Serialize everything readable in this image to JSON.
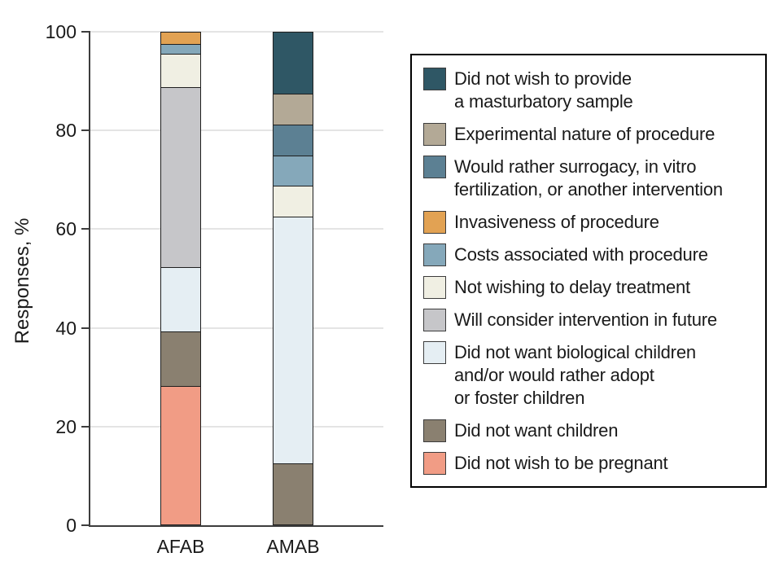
{
  "chart_data": {
    "type": "bar",
    "stacked": true,
    "title": "",
    "xlabel": "",
    "ylabel": "Responses, %",
    "categories": [
      "AFAB",
      "AMAB"
    ],
    "ylim": [
      0,
      100
    ],
    "yticks": [
      0,
      20,
      40,
      60,
      80,
      100
    ],
    "grid": "horizontal",
    "legend_position": "right",
    "series": [
      {
        "id": "masturbatory-sample",
        "name": "Did not wish to provide a masturbatory sample",
        "legend_label": "Did not wish to provide\na masturbatory sample",
        "color": "#2f5765",
        "values": [
          0,
          12.5
        ]
      },
      {
        "id": "experimental-nature",
        "name": "Experimental nature of procedure",
        "legend_label": "Experimental nature of procedure",
        "color": "#b3a996",
        "values": [
          0,
          6.25
        ]
      },
      {
        "id": "surrogacy-ivf",
        "name": "Would rather surrogacy, in vitro fertilization, or another intervention",
        "legend_label": "Would rather surrogacy, in vitro\nfertilization, or another intervention",
        "color": "#5c8093",
        "values": [
          0,
          6.25
        ]
      },
      {
        "id": "invasiveness",
        "name": "Invasiveness of procedure",
        "legend_label": "Invasiveness of procedure",
        "color": "#e2a253",
        "values": [
          2.4,
          0
        ]
      },
      {
        "id": "costs",
        "name": "Costs associated with procedure",
        "legend_label": "Costs associated with procedure",
        "color": "#85a8ba",
        "values": [
          2.0,
          6.25
        ]
      },
      {
        "id": "delay-treatment",
        "name": "Not wishing to delay treatment",
        "legend_label": "Not wishing to delay treatment",
        "color": "#f0efe3",
        "values": [
          6.9,
          6.25
        ]
      },
      {
        "id": "consider-future",
        "name": "Will consider intervention in future",
        "legend_label": "Will consider intervention in future",
        "color": "#c6c6c9",
        "values": [
          36.4,
          0
        ]
      },
      {
        "id": "no-biological-children",
        "name": "Did not want biological children and/or would rather adopt or foster children",
        "legend_label": "Did not want biological children\nand/or would rather adopt\nor foster children",
        "color": "#e5eef3",
        "values": [
          13.1,
          50
        ]
      },
      {
        "id": "no-children",
        "name": "Did not want children",
        "legend_label": "Did not want children",
        "color": "#8a8070",
        "values": [
          11.0,
          12.5
        ]
      },
      {
        "id": "no-pregnancy",
        "name": "Did not wish to be pregnant",
        "legend_label": "Did not wish to be pregnant",
        "color": "#f19c85",
        "values": [
          28.2,
          0
        ]
      }
    ]
  },
  "colors": {
    "axis": "#3d3d3d",
    "gridline": "#e4e4e4",
    "segment_border": "#1f1f1f",
    "text": "#1a1a1a",
    "background": "#ffffff"
  }
}
